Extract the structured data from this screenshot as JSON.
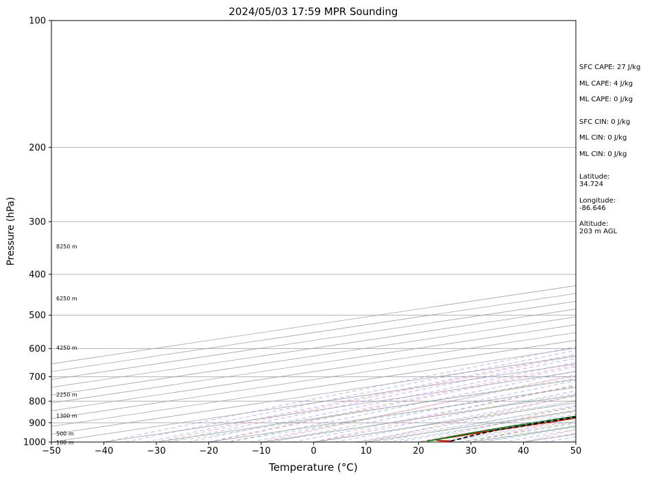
{
  "chart_data": {
    "type": "line",
    "subtype": "skew-t",
    "title": "2024/05/03 17:59 MPR Sounding",
    "xlabel": "Temperature (°C)",
    "ylabel": "Pressure (hPa)",
    "xlim": [
      -50,
      50
    ],
    "ylim": [
      1000,
      100
    ],
    "y_scale": "log",
    "x_ticks": [
      -50,
      -40,
      -30,
      -20,
      -10,
      0,
      10,
      20,
      30,
      40,
      50
    ],
    "y_ticks": [
      1000,
      900,
      800,
      700,
      600,
      500,
      400,
      300,
      200,
      100
    ],
    "grid": true,
    "series": [
      {
        "color": "#e00000",
        "style": "solid",
        "points": [
          [
            25.0,
            995
          ],
          [
            22,
            992
          ],
          [
            20.5,
            988
          ],
          [
            20,
            980
          ],
          [
            20,
            965
          ],
          [
            19.5,
            945
          ],
          [
            19.5,
            925
          ],
          [
            19.5,
            900
          ],
          [
            19,
            880
          ],
          [
            19,
            860
          ],
          [
            19.5,
            840
          ],
          [
            19.5,
            820
          ],
          [
            19,
            800
          ],
          [
            18.5,
            780
          ],
          [
            18,
            760
          ],
          [
            18,
            740
          ],
          [
            18,
            720
          ],
          [
            17.5,
            700
          ],
          [
            16.5,
            680
          ],
          [
            15.5,
            660
          ],
          [
            14.5,
            640
          ],
          [
            13.5,
            620
          ],
          [
            12.5,
            600
          ],
          [
            11,
            580
          ],
          [
            10,
            560
          ],
          [
            8.5,
            540
          ],
          [
            6.5,
            520
          ],
          [
            4.5,
            500
          ],
          [
            2.5,
            480
          ],
          [
            0.5,
            460
          ],
          [
            -1,
            440
          ],
          [
            -2.5,
            420
          ],
          [
            -3.5,
            400
          ],
          [
            -5,
            380
          ],
          [
            -7,
            360
          ],
          [
            -8.5,
            340
          ],
          [
            -10.5,
            320
          ],
          [
            -13,
            300
          ],
          [
            -15,
            285
          ],
          [
            -17,
            275
          ]
        ]
      },
      {
        "color": "#008000",
        "style": "solid",
        "points": [
          [
            20.5,
            995
          ],
          [
            20,
            985
          ],
          [
            19.5,
            975
          ],
          [
            18.5,
            955
          ],
          [
            18,
            940
          ],
          [
            17.5,
            920
          ],
          [
            17.5,
            900
          ],
          [
            17,
            880
          ],
          [
            17,
            860
          ],
          [
            17,
            840
          ],
          [
            17,
            820
          ],
          [
            16.5,
            800
          ],
          [
            16,
            790
          ],
          [
            15,
            780
          ],
          [
            13,
            770
          ],
          [
            10,
            760
          ],
          [
            7,
            750
          ],
          [
            3,
            740
          ],
          [
            0,
            730
          ],
          [
            -4,
            715
          ],
          [
            -10,
            695
          ],
          [
            -16,
            675
          ],
          [
            -20,
            665
          ],
          [
            -24,
            650
          ],
          [
            -28,
            638
          ],
          [
            -31,
            628
          ],
          [
            -34,
            620
          ],
          [
            -37,
            611
          ],
          [
            -40,
            600
          ],
          [
            -43,
            590
          ],
          [
            -46,
            580
          ],
          [
            -48,
            570
          ],
          [
            -50,
            562
          ],
          [
            -53,
            550
          ],
          [
            -56,
            540
          ],
          [
            -59,
            530
          ],
          [
            -61,
            520
          ],
          [
            -63,
            510
          ],
          [
            -64,
            500
          ],
          [
            -65,
            490
          ],
          [
            -66,
            480
          ],
          [
            -67,
            470
          ],
          [
            -67.5,
            460
          ],
          [
            -68.5,
            450
          ],
          [
            -69.5,
            440
          ],
          [
            -70,
            430
          ],
          [
            -70,
            420
          ],
          [
            -70.5,
            400
          ],
          [
            -71,
            390
          ],
          [
            -71.5,
            380
          ],
          [
            -72.5,
            370
          ],
          [
            -73.5,
            360
          ],
          [
            -74.5,
            350
          ],
          [
            -75.5,
            340
          ],
          [
            -75,
            330
          ],
          [
            -75,
            320
          ],
          [
            -76,
            310
          ],
          [
            -80,
            300
          ],
          [
            -82,
            290
          ],
          [
            -84,
            280
          ],
          [
            -86,
            275
          ]
        ]
      },
      {
        "color": "#000000",
        "style": "dashed",
        "points": [
          [
            25.0,
            995
          ],
          [
            23.5,
            980
          ],
          [
            21.5,
            960
          ],
          [
            19.5,
            935
          ],
          [
            19,
            915
          ],
          [
            18.5,
            895
          ],
          [
            18,
            875
          ],
          [
            17.5,
            855
          ],
          [
            17,
            835
          ],
          [
            16.5,
            815
          ],
          [
            16,
            795
          ],
          [
            15.5,
            775
          ],
          [
            15,
            755
          ],
          [
            14.5,
            735
          ],
          [
            14,
            715
          ],
          [
            13,
            695
          ],
          [
            12,
            675
          ],
          [
            11,
            655
          ],
          [
            10,
            635
          ],
          [
            9,
            615
          ],
          [
            8,
            595
          ],
          [
            7,
            575
          ],
          [
            6,
            555
          ],
          [
            5,
            535
          ],
          [
            3.5,
            515
          ],
          [
            2,
            495
          ],
          [
            0.5,
            475
          ],
          [
            -1,
            455
          ],
          [
            -2.5,
            435
          ],
          [
            -4.5,
            415
          ],
          [
            -6.5,
            395
          ],
          [
            -8.5,
            375
          ],
          [
            -10.5,
            355
          ],
          [
            -13,
            335
          ],
          [
            -15.5,
            315
          ],
          [
            -18,
            300
          ],
          [
            -20.5,
            285
          ],
          [
            -22.5,
            275
          ]
        ]
      }
    ]
  },
  "heights": [
    "100 m",
    "500 m",
    "1300 m",
    "2250 m",
    "4250 m",
    "6250 m",
    "8250 m"
  ],
  "info": {
    "sfc_cape": "SFC CAPE: 27 J/kg",
    "ml_cape_1": "ML CAPE: 4 J/kg",
    "ml_cape_2": "ML CAPE: 0 J/kg",
    "sfc_cin": "SFC CIN: 0 J/kg",
    "ml_cin_1": "ML CIN: 0 J/kg",
    "ml_cin_2": "ML CIN: 0 J/kg",
    "latitude": "Latitude:\n34.724",
    "longitude": "Longitude:\n-86.646",
    "altitude": "Altitude:\n203 m AGL"
  }
}
